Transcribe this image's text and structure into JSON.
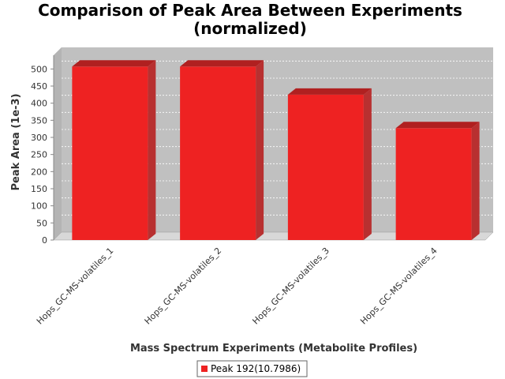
{
  "chart_data": {
    "type": "bar",
    "title": "Comparison of Peak Area Between Experiments",
    "subtitle": "(normalized)",
    "xlabel": "Mass Spectrum Experiments (Metabolite Profiles)",
    "ylabel": "Peak Area (1e-3)",
    "categories": [
      "Hops_GC-MS-volatiles_1",
      "Hops_GC-MS-volatiles_2",
      "Hops_GC-MS-volatiles_3",
      "Hops_GC-MS-volatiles_4"
    ],
    "series": [
      {
        "name": "Peak 192(10.7986)",
        "values": [
          507,
          507,
          425,
          327
        ],
        "color": "#ee2222"
      }
    ],
    "ylim": [
      0,
      540
    ],
    "yticks": [
      0,
      50,
      100,
      150,
      200,
      250,
      300,
      350,
      400,
      450,
      500
    ],
    "grid": true,
    "legend_position": "bottom-center",
    "plot_background": "#c0c0c0"
  }
}
